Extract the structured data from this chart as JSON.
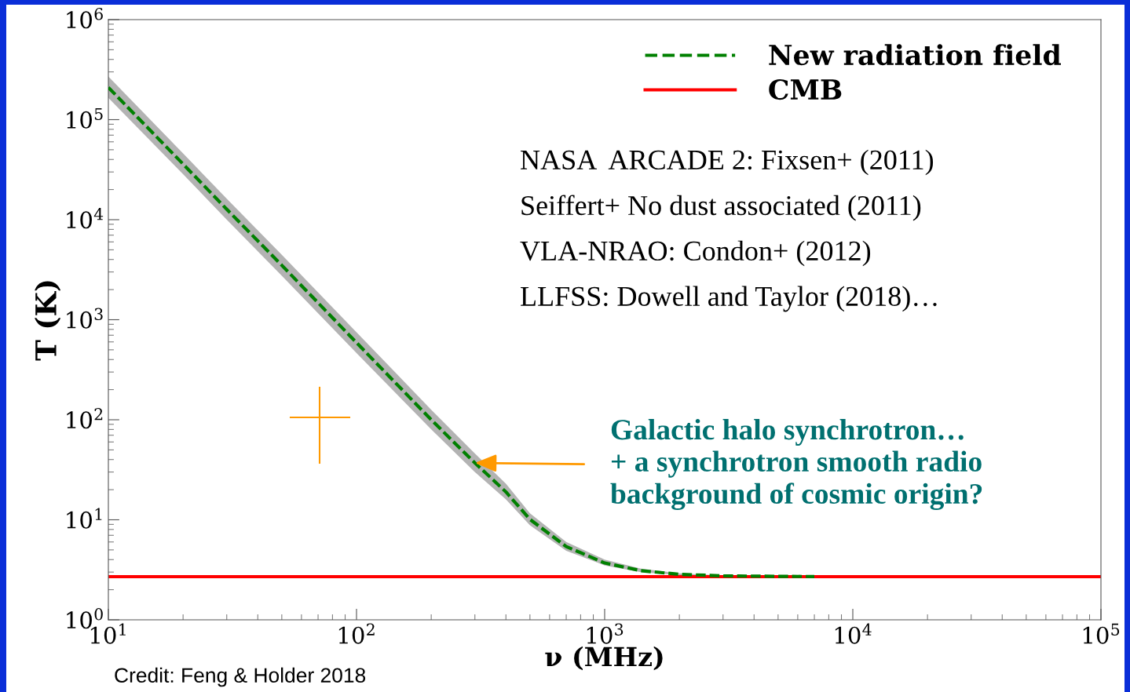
{
  "chart_data": {
    "type": "line",
    "xlabel": "ν (MHz)",
    "ylabel": "T (K)",
    "log": "xy",
    "xlim": [
      10,
      100000
    ],
    "ylim": [
      1,
      1000000
    ],
    "xticks": [
      {
        "value": 10,
        "label": "10$^{1}$"
      },
      {
        "value": 100,
        "label": "10$^{2}$"
      },
      {
        "value": 1000,
        "label": "10$^{3}$"
      },
      {
        "value": 10000,
        "label": "10$^{4}$"
      },
      {
        "value": 100000,
        "label": "10$^{5}$"
      }
    ],
    "yticks": [
      {
        "value": 1,
        "label": "10$^{0}$"
      },
      {
        "value": 10,
        "label": "10$^{1}$"
      },
      {
        "value": 100,
        "label": "10$^{2}$"
      },
      {
        "value": 1000,
        "label": "10$^{3}$"
      },
      {
        "value": 10000,
        "label": "10$^{4}$"
      },
      {
        "value": 100000,
        "label": "10$^{5}$"
      },
      {
        "value": 1000000,
        "label": "10$^{6}$"
      }
    ],
    "grid": false,
    "legend": "top right",
    "series": [
      {
        "name": "New radiation field",
        "color": "#008000",
        "line_style": "dashed",
        "x": [
          10,
          20,
          30,
          50,
          100,
          200,
          300,
          400,
          500,
          700,
          1000,
          1400,
          2000,
          3000,
          5000,
          7000
        ],
        "values": [
          210000,
          36000,
          12700,
          3500,
          590,
          100,
          37,
          19,
          10.1,
          5.4,
          3.7,
          3.1,
          2.85,
          2.75,
          2.72,
          2.71
        ],
        "lower": [
          165000,
          28500,
          10000,
          2750,
          465,
          80,
          30,
          16,
          8.8,
          4.9,
          3.5,
          3.0,
          2.8,
          2.73,
          2.71,
          2.7
        ],
        "upper": [
          270000,
          46000,
          16200,
          4450,
          750,
          126,
          46,
          23,
          11.6,
          6.0,
          4.0,
          3.25,
          2.92,
          2.78,
          2.74,
          2.72
        ]
      },
      {
        "name": "CMB",
        "color": "#ff0000",
        "line_style": "solid",
        "x": [
          10,
          100000
        ],
        "values": [
          2.7,
          2.7
        ]
      }
    ],
    "annotations": [
      "NASA  ARCADE 2: Fixsen+ (2011)",
      "Seiffert+ No dust associated (2011)",
      "VLA-NRAO: Condon+ (2012)",
      "LLFSS: Dowell and Taylor (2018)…",
      {
        "text": "Galactic halo synchrotron…\n+ a synchrotron smooth radio\nbackground of cosmic origin?",
        "x": 300,
        "y": 37
      },
      "Credit: Feng & Holder 2018"
    ]
  }
}
